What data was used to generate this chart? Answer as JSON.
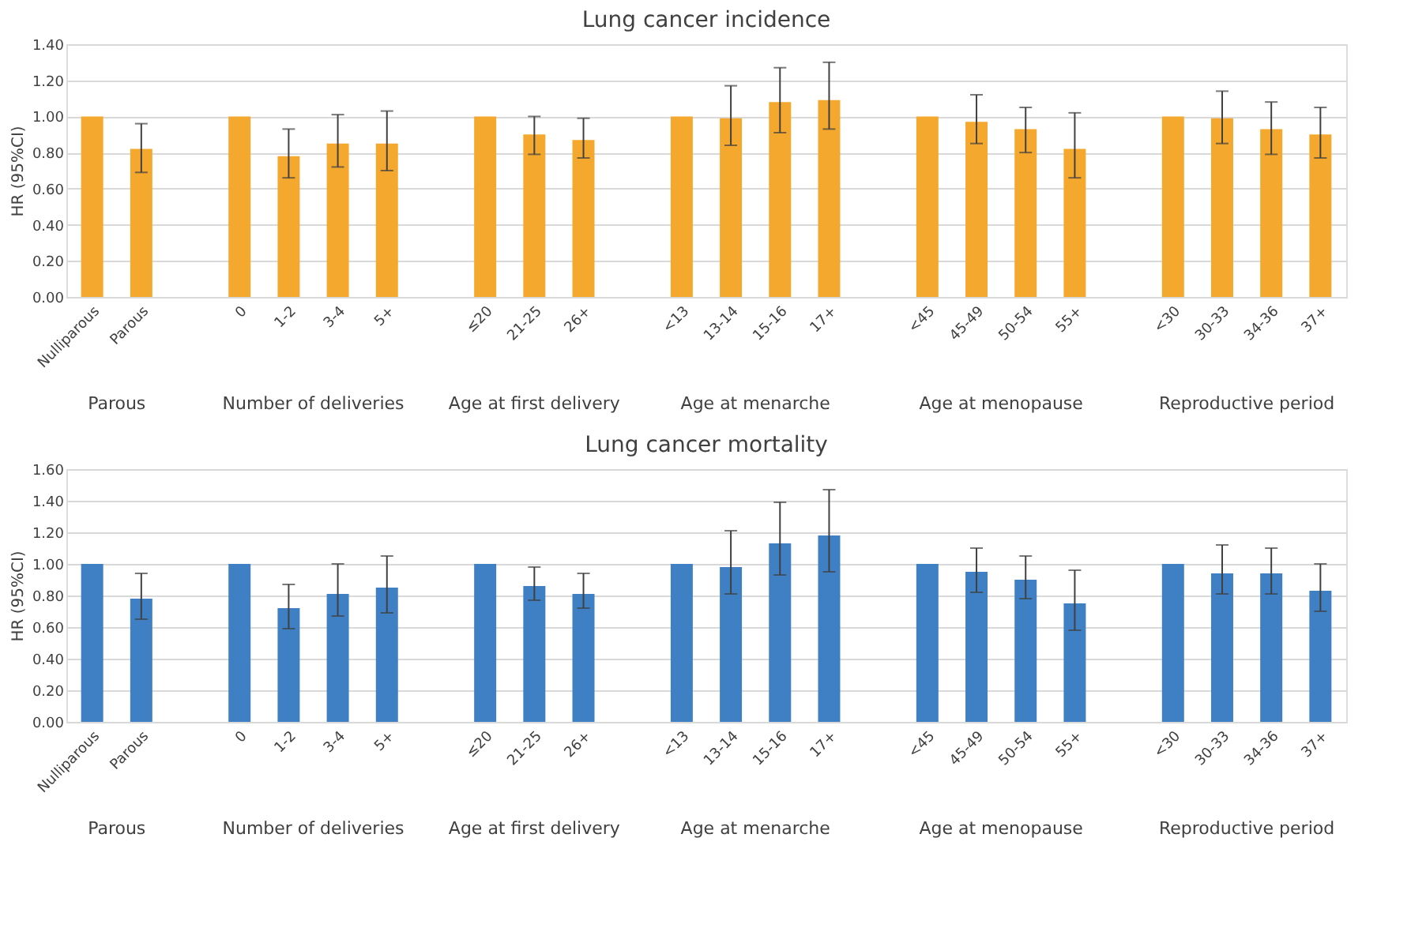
{
  "chart_data": [
    {
      "type": "bar",
      "title": "Lung cancer incidence",
      "ylabel": "HR (95%CI)",
      "categories": [
        "Nulliparous",
        "Parous",
        null,
        "0",
        "1-2",
        "3-4",
        "5+",
        null,
        "≤20",
        "21-25",
        "26+",
        null,
        "<13",
        "13-14",
        "15-16",
        "17+",
        null,
        "<45",
        "45-49",
        "50-54",
        "55+",
        null,
        "<30",
        "30-33",
        "34-36",
        "37+"
      ],
      "series": [
        {
          "color": "#f5a82e",
          "values": [
            1.0,
            0.82,
            null,
            1.0,
            0.78,
            0.85,
            0.85,
            null,
            1.0,
            0.9,
            0.87,
            null,
            1.0,
            0.99,
            1.08,
            1.09,
            null,
            1.0,
            0.97,
            0.93,
            0.82,
            null,
            1.0,
            0.99,
            0.93,
            0.9
          ],
          "errors": [
            null,
            [
              0.69,
              0.96
            ],
            null,
            null,
            [
              0.66,
              0.93
            ],
            [
              0.72,
              1.01
            ],
            [
              0.7,
              1.03
            ],
            null,
            null,
            [
              0.79,
              1.0
            ],
            [
              0.77,
              0.99
            ],
            null,
            null,
            [
              0.84,
              1.17
            ],
            [
              0.91,
              1.27
            ],
            [
              0.93,
              1.3
            ],
            null,
            null,
            [
              0.85,
              1.12
            ],
            [
              0.8,
              1.05
            ],
            [
              0.66,
              1.02
            ],
            null,
            null,
            [
              0.85,
              1.14
            ],
            [
              0.79,
              1.08
            ],
            [
              0.77,
              1.05
            ]
          ]
        }
      ],
      "ylim": [
        0,
        1.4
      ],
      "yticks": [
        {
          "value": 0,
          "label": "0.00"
        },
        {
          "value": 0.2,
          "label": "0.20"
        },
        {
          "value": 0.4,
          "label": "0.40"
        },
        {
          "value": 0.6,
          "label": "0.60"
        },
        {
          "value": 0.8,
          "label": "0.80"
        },
        {
          "value": 1.0,
          "label": "1.00"
        },
        {
          "value": 1.2,
          "label": "1.20"
        },
        {
          "value": 1.4,
          "label": "1.40"
        }
      ],
      "grid": "y",
      "annotations": [
        "Parous",
        "Number of deliveries",
        "Age at first delivery",
        "Age at menarche",
        "Age at menopause",
        "Reproductive period"
      ]
    },
    {
      "type": "bar",
      "title": "Lung cancer mortality",
      "ylabel": "HR (95%CI)",
      "categories": [
        "Nulliparous",
        "Parous",
        null,
        "0",
        "1-2",
        "3-4",
        "5+",
        null,
        "≤20",
        "21-25",
        "26+",
        null,
        "<13",
        "13-14",
        "15-16",
        "17+",
        null,
        "<45",
        "45-49",
        "50-54",
        "55+",
        null,
        "<30",
        "30-33",
        "34-36",
        "37+"
      ],
      "series": [
        {
          "color": "#3f7fc4",
          "values": [
            1.0,
            0.78,
            null,
            1.0,
            0.72,
            0.81,
            0.85,
            null,
            1.0,
            0.86,
            0.81,
            null,
            1.0,
            0.98,
            1.13,
            1.18,
            null,
            1.0,
            0.95,
            0.9,
            0.75,
            null,
            1.0,
            0.94,
            0.94,
            0.83
          ],
          "errors": [
            null,
            [
              0.65,
              0.94
            ],
            null,
            null,
            [
              0.59,
              0.87
            ],
            [
              0.67,
              1.0
            ],
            [
              0.69,
              1.05
            ],
            null,
            null,
            [
              0.77,
              0.98
            ],
            [
              0.72,
              0.94
            ],
            null,
            null,
            [
              0.81,
              1.21
            ],
            [
              0.93,
              1.39
            ],
            [
              0.95,
              1.47
            ],
            null,
            null,
            [
              0.82,
              1.1
            ],
            [
              0.78,
              1.05
            ],
            [
              0.58,
              0.96
            ],
            null,
            null,
            [
              0.81,
              1.12
            ],
            [
              0.81,
              1.1
            ],
            [
              0.7,
              1.0
            ]
          ]
        }
      ],
      "ylim": [
        0,
        1.6
      ],
      "yticks": [
        {
          "value": 0,
          "label": "0.00"
        },
        {
          "value": 0.2,
          "label": "0.20"
        },
        {
          "value": 0.4,
          "label": "0.40"
        },
        {
          "value": 0.6,
          "label": "0.60"
        },
        {
          "value": 0.8,
          "label": "0.80"
        },
        {
          "value": 1.0,
          "label": "1.00"
        },
        {
          "value": 1.2,
          "label": "1.20"
        },
        {
          "value": 1.4,
          "label": "1.40"
        },
        {
          "value": 1.6,
          "label": "1.60"
        }
      ],
      "grid": "y",
      "annotations": [
        "Parous",
        "Number of deliveries",
        "Age at first delivery",
        "Age at menarche",
        "Age at menopause",
        "Reproductive period"
      ]
    }
  ]
}
